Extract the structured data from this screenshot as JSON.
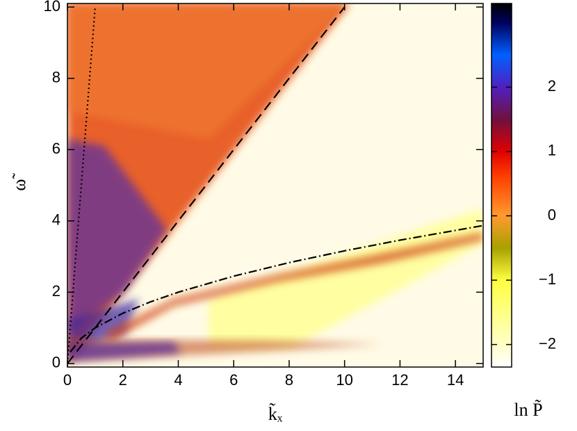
{
  "chart_data": {
    "type": "heatmap",
    "x_label": "k̃ₓ",
    "y_label": "ω̃",
    "colorbar_label": "ln P̃",
    "xlim": [
      0,
      15
    ],
    "ylim": [
      -0.1,
      10.1
    ],
    "xticks": [
      0,
      2,
      4,
      6,
      8,
      10,
      12,
      14
    ],
    "yticks": [
      0,
      2,
      4,
      6,
      8,
      10
    ],
    "clim": [
      -2.35,
      3.3
    ],
    "cticks": [
      {
        "value": -2,
        "label": "−2"
      },
      {
        "value": -1,
        "label": "−1"
      },
      0,
      1,
      2
    ],
    "colormap": [
      {
        "value": -2.35,
        "color": "#ffffff"
      },
      {
        "value": -2,
        "color": "#ffffc8"
      },
      {
        "value": -1,
        "color": "#ffff40"
      },
      {
        "value": -0.5,
        "color": "#a8a000"
      },
      {
        "value": 0,
        "color": "#ff9a30"
      },
      {
        "value": 0.6,
        "color": "#ff4000"
      },
      {
        "value": 1,
        "color": "#e00000"
      },
      {
        "value": 1.5,
        "color": "#701040"
      },
      {
        "value": 2,
        "color": "#5020c0"
      },
      {
        "value": 2.5,
        "color": "#0060ff"
      },
      {
        "value": 3,
        "color": "#000060"
      },
      {
        "value": 3.3,
        "color": "#000000"
      }
    ],
    "series": [
      {
        "style": "dashed",
        "color": "#000000",
        "x": [
          0,
          10
        ],
        "values": [
          0,
          10
        ]
      },
      {
        "style": "dotted",
        "color": "#000000",
        "x": [
          0,
          1
        ],
        "values": [
          0,
          10
        ]
      },
      {
        "style": "dashdot",
        "color": "#000000",
        "x": [
          0.1,
          0.5,
          1,
          2,
          3,
          4,
          6,
          8,
          10,
          12,
          15
        ],
        "values": [
          0.32,
          0.71,
          1,
          1.41,
          1.73,
          2,
          2.45,
          2.83,
          3.16,
          3.46,
          3.87
        ]
      }
    ]
  }
}
